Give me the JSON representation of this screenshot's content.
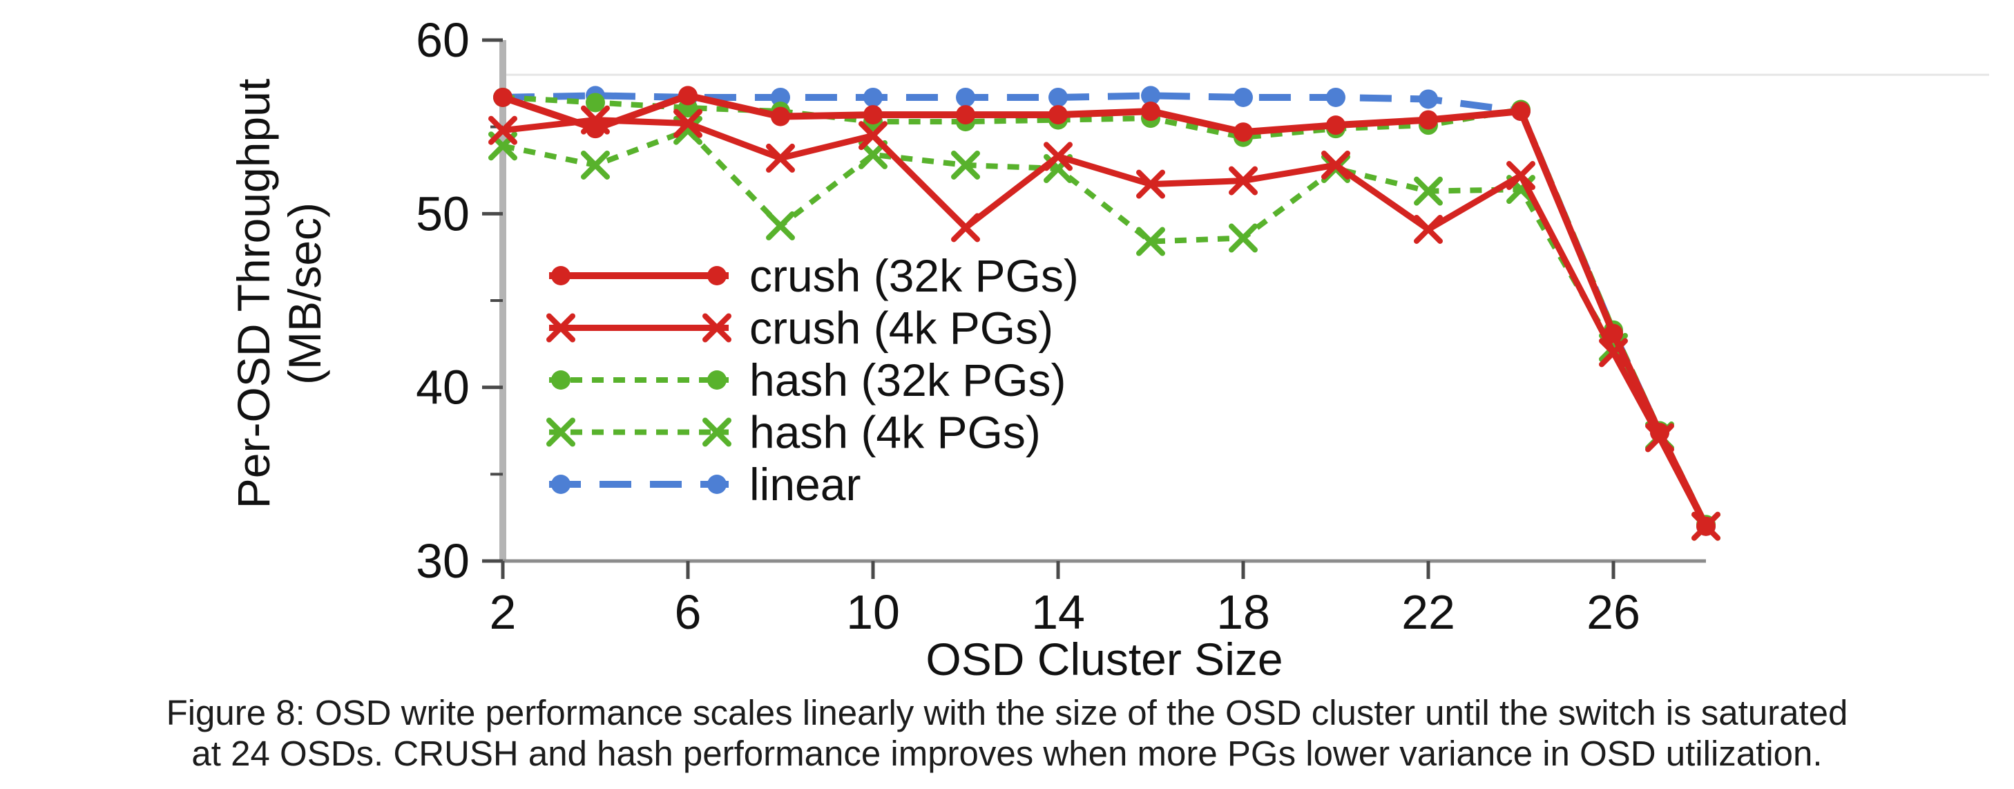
{
  "figure": {
    "caption_line1": "Figure 8: OSD write performance scales linearly with the size of the OSD cluster until the switch is saturated",
    "caption_line2": "at 24 OSDs. CRUSH and hash performance improves when more PGs lower variance in OSD utilization."
  },
  "colors": {
    "crush_red": "#d42420",
    "hash_green": "#58b22c",
    "linear_blue": "#4d7fd4",
    "axis_gray": "#8c8c8c",
    "y_axis_gray": "#b4b4b4",
    "tick_dark": "#4a4a4a",
    "gridline_light": "#e6e6e6",
    "text_black": "#111111"
  },
  "chart_data": {
    "type": "line",
    "title": "",
    "xlabel": "OSD Cluster Size",
    "ylabel_line1": "Per-OSD Throughput",
    "ylabel_line2": "(MB/sec)",
    "xlim": [
      2,
      28
    ],
    "ylim": [
      30,
      60
    ],
    "x_ticks": [
      2,
      6,
      10,
      14,
      18,
      22,
      26
    ],
    "y_ticks_major": [
      30,
      40,
      50,
      60
    ],
    "y_ticks_minor": [
      35,
      45,
      55
    ],
    "gridlines_y": [
      58
    ],
    "grid": "single faint horizontal reference line near top",
    "legend_position": "inside plot, left-center",
    "x": [
      2,
      4,
      6,
      8,
      10,
      12,
      14,
      16,
      18,
      20,
      22,
      24,
      26,
      27,
      28
    ],
    "series": [
      {
        "name": "crush (32k PGs)",
        "color": "#d42420",
        "line": "solid",
        "marker": "circle",
        "width": 10,
        "values": [
          56.7,
          54.9,
          56.8,
          55.6,
          55.7,
          55.7,
          55.7,
          55.9,
          54.7,
          55.1,
          55.4,
          55.9,
          43.1,
          37.4,
          32.0
        ]
      },
      {
        "name": "crush (4k PGs)",
        "color": "#d42420",
        "line": "solid",
        "marker": "x",
        "width": 9,
        "values": [
          54.8,
          55.4,
          55.2,
          53.2,
          54.5,
          49.2,
          53.3,
          51.7,
          51.9,
          52.8,
          49.1,
          52.2,
          42.0,
          37.1,
          32.0
        ]
      },
      {
        "name": "hash (32k PGs)",
        "color": "#58b22c",
        "line": "dashed",
        "marker": "circle",
        "width": 8,
        "values": [
          56.7,
          56.4,
          56.1,
          55.9,
          55.3,
          55.3,
          55.4,
          55.5,
          54.4,
          54.9,
          55.1,
          56.0,
          43.3,
          37.5,
          32.1
        ]
      },
      {
        "name": "hash (4k PGs)",
        "color": "#58b22c",
        "line": "dashed",
        "marker": "x",
        "width": 8,
        "values": [
          53.9,
          52.8,
          54.8,
          49.3,
          53.4,
          52.8,
          52.6,
          48.4,
          48.6,
          52.6,
          51.3,
          51.4,
          42.3,
          37.2,
          32.0
        ]
      },
      {
        "name": "linear",
        "color": "#4d7fd4",
        "line": "long-dash",
        "marker": "circle",
        "width": 10,
        "values": [
          56.7,
          56.8,
          56.7,
          56.7,
          56.7,
          56.7,
          56.7,
          56.8,
          56.7,
          56.7,
          56.6,
          55.9,
          43.2,
          37.4,
          32.0
        ]
      }
    ]
  }
}
